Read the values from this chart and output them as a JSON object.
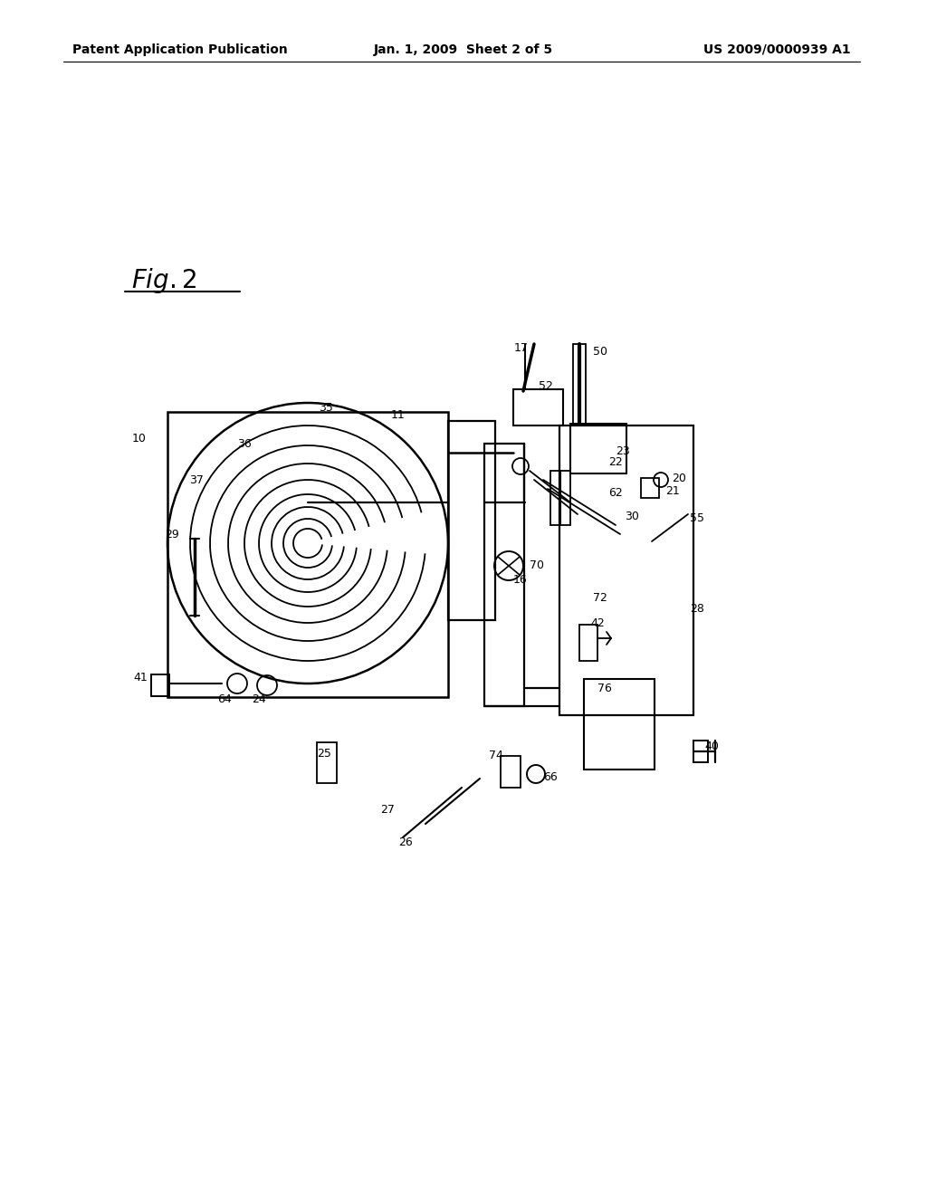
{
  "bg_color": "#ffffff",
  "header_left": "Patent Application Publication",
  "header_center": "Jan. 1, 2009  Sheet 2 of 5",
  "header_right": "US 2009/0000939 A1",
  "fig_label": "Fig. 2"
}
